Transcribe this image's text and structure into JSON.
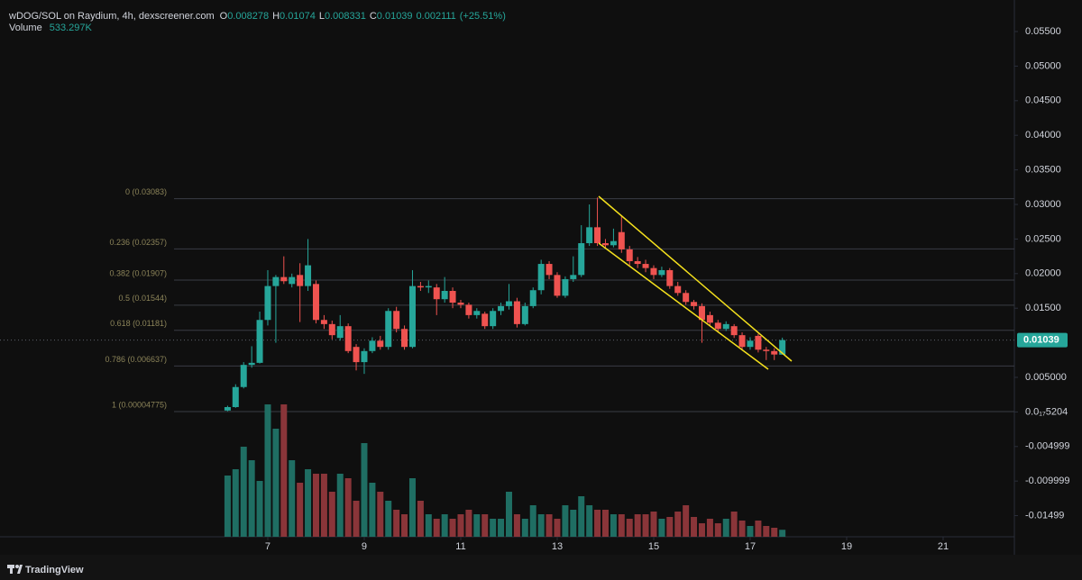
{
  "chart_data": {
    "type": "candlestick",
    "title": "wDOG/SOL on Raydium, 4h, dexscreener.com",
    "ohlc_legend": [
      {
        "label": "O",
        "value": 0.008278
      },
      {
        "label": "H",
        "value": 0.01074
      },
      {
        "label": "L",
        "value": 0.008331
      },
      {
        "label": "C",
        "value": 0.01039
      }
    ],
    "change": 0.002111,
    "change_pct_label": "(+25.51%)",
    "volume_name": "Volume",
    "volume_last": {
      "value": 533297,
      "label": "533.297K"
    },
    "last_price": 0.01039,
    "up_color": "#26a69a",
    "down_color": "#ef5350",
    "volume_up_color": "#1f6e63",
    "volume_down_color": "#8a3539",
    "x": [
      6.167,
      6.333,
      6.5,
      6.667,
      6.833,
      7,
      7.167,
      7.333,
      7.5,
      7.667,
      7.833,
      8,
      8.167,
      8.333,
      8.5,
      8.667,
      8.833,
      9,
      9.167,
      9.333,
      9.5,
      9.667,
      9.833,
      10,
      10.167,
      10.333,
      10.5,
      10.667,
      10.833,
      11,
      11.167,
      11.333,
      11.5,
      11.667,
      11.833,
      12,
      12.167,
      12.333,
      12.5,
      12.667,
      12.833,
      13,
      13.167,
      13.333,
      13.5,
      13.667,
      13.833,
      14,
      14.167,
      14.333,
      14.5,
      14.667,
      14.833,
      15,
      15.167,
      15.333,
      15.5,
      15.667,
      15.833,
      16,
      16.167,
      16.333,
      16.5,
      16.667,
      16.833,
      17,
      17.167,
      17.333,
      17.5,
      17.667
    ],
    "open": [
      0.0002,
      0.0007,
      0.0036,
      0.0068,
      0.0071,
      0.0133,
      0.0182,
      0.0195,
      0.0185,
      0.0198,
      0.0182,
      0.0185,
      0.0133,
      0.0127,
      0.0107,
      0.0124,
      0.0094,
      0.0072,
      0.0088,
      0.0103,
      0.0094,
      0.0146,
      0.012,
      0.0094,
      0.0182,
      0.018,
      0.018,
      0.0163,
      0.0175,
      0.0158,
      0.0155,
      0.014,
      0.0142,
      0.0124,
      0.0146,
      0.0153,
      0.016,
      0.0127,
      0.0153,
      0.0176,
      0.0214,
      0.0198,
      0.0168,
      0.0192,
      0.0198,
      0.0244,
      0.0267,
      0.0244,
      0.0241,
      0.026,
      0.0235,
      0.0218,
      0.0214,
      0.0208,
      0.0198,
      0.0205,
      0.0182,
      0.0172,
      0.0159,
      0.0153,
      0.014,
      0.0129,
      0.012,
      0.0124,
      0.0111,
      0.0094,
      0.011,
      0.009,
      0.0088,
      0.008278
    ],
    "high": [
      0.0009,
      0.004,
      0.0072,
      0.0095,
      0.0145,
      0.0205,
      0.0198,
      0.0225,
      0.02,
      0.0215,
      0.025,
      0.019,
      0.014,
      0.0132,
      0.014,
      0.0128,
      0.0098,
      0.0092,
      0.0108,
      0.011,
      0.015,
      0.0152,
      0.0125,
      0.0205,
      0.0188,
      0.019,
      0.0185,
      0.0195,
      0.018,
      0.0162,
      0.0158,
      0.015,
      0.0145,
      0.015,
      0.0158,
      0.0185,
      0.0165,
      0.0158,
      0.018,
      0.022,
      0.0218,
      0.0202,
      0.0196,
      0.0225,
      0.027,
      0.03,
      0.031,
      0.025,
      0.0265,
      0.0283,
      0.024,
      0.0224,
      0.022,
      0.0212,
      0.021,
      0.0208,
      0.0188,
      0.0176,
      0.0162,
      0.0157,
      0.0145,
      0.0133,
      0.0131,
      0.0127,
      0.0115,
      0.0108,
      0.0113,
      0.0094,
      0.0092,
      0.01074
    ],
    "low": [
      0.0001,
      0.0006,
      0.0034,
      0.0064,
      0.007,
      0.0125,
      0.01,
      0.0185,
      0.018,
      0.013,
      0.0175,
      0.0128,
      0.012,
      0.0105,
      0.0103,
      0.0085,
      0.006,
      0.0055,
      0.0085,
      0.009,
      0.009,
      0.0115,
      0.009,
      0.0092,
      0.0175,
      0.0172,
      0.014,
      0.0158,
      0.015,
      0.015,
      0.0135,
      0.0135,
      0.012,
      0.012,
      0.014,
      0.0148,
      0.0122,
      0.0125,
      0.015,
      0.017,
      0.0192,
      0.0165,
      0.0165,
      0.0188,
      0.0195,
      0.024,
      0.024,
      0.0236,
      0.0238,
      0.023,
      0.0212,
      0.0208,
      0.0202,
      0.0192,
      0.0195,
      0.0178,
      0.0168,
      0.0155,
      0.0148,
      0.01,
      0.0125,
      0.0115,
      0.0117,
      0.0107,
      0.009,
      0.009,
      0.0086,
      0.0075,
      0.0075,
      0.008331
    ],
    "close": [
      0.0007,
      0.0036,
      0.0068,
      0.0071,
      0.0133,
      0.0182,
      0.0195,
      0.0189,
      0.0195,
      0.0182,
      0.0212,
      0.0133,
      0.0127,
      0.0111,
      0.0124,
      0.0088,
      0.0072,
      0.0088,
      0.0103,
      0.0094,
      0.0146,
      0.012,
      0.0094,
      0.0182,
      0.018,
      0.0182,
      0.0163,
      0.0175,
      0.0158,
      0.0155,
      0.014,
      0.0146,
      0.0124,
      0.0146,
      0.0153,
      0.016,
      0.0127,
      0.0153,
      0.0176,
      0.0214,
      0.0198,
      0.0168,
      0.0192,
      0.0198,
      0.0244,
      0.0267,
      0.0244,
      0.0241,
      0.0247,
      0.0235,
      0.0218,
      0.0214,
      0.0208,
      0.0198,
      0.0205,
      0.0182,
      0.0172,
      0.0159,
      0.0153,
      0.0133,
      0.0129,
      0.012,
      0.0127,
      0.0111,
      0.0094,
      0.0103,
      0.009,
      0.0088,
      0.0083,
      0.01039
    ],
    "volume": [
      4675000,
      5156000,
      6875000,
      5844000,
      4263000,
      10106000,
      8250000,
      10106000,
      5844000,
      4125000,
      5156000,
      4813000,
      4813000,
      3438000,
      4813000,
      4469000,
      2750000,
      7150000,
      4125000,
      3438000,
      2750000,
      2063000,
      1719000,
      4469000,
      2750000,
      1719000,
      1375000,
      1719000,
      1375000,
      1719000,
      2063000,
      1719000,
      1719000,
      1375000,
      1375000,
      3438000,
      1719000,
      1375000,
      2406000,
      1719000,
      1719000,
      1375000,
      2406000,
      2063000,
      3094000,
      2406000,
      2063000,
      2063000,
      1719000,
      1719000,
      1375000,
      1719000,
      1719000,
      1925000,
      1375000,
      1513000,
      1925000,
      2406000,
      1513000,
      1031000,
      1375000,
      1031000,
      1375000,
      1925000,
      1238000,
      825000,
      1238000,
      825000,
      688000,
      533297
    ],
    "volume_ylim": [
      0,
      11000000
    ],
    "xlim": [
      1.449,
      22.477
    ],
    "xticks": [
      7,
      9,
      11,
      13,
      15,
      17,
      19,
      21
    ],
    "ylim": [
      -0.01805,
      0.05956
    ],
    "yticks": [
      {
        "value": 0.055,
        "label": "0.05500"
      },
      {
        "value": 0.05,
        "label": "0.05000"
      },
      {
        "value": 0.045,
        "label": "0.04500"
      },
      {
        "value": 0.04,
        "label": "0.04000"
      },
      {
        "value": 0.035,
        "label": "0.03500"
      },
      {
        "value": 0.03,
        "label": "0.03000"
      },
      {
        "value": 0.025,
        "label": "0.02500"
      },
      {
        "value": 0.02,
        "label": "0.02000"
      },
      {
        "value": 0.015,
        "label": "0.01500"
      },
      {
        "value": 0.005,
        "label": "0.005000"
      },
      {
        "value": 5.204e-18,
        "label": "0.0₁₇5204"
      },
      -0.004999,
      -0.009999,
      -0.01499
    ],
    "fib_levels": [
      {
        "label": "0 (0.03083)",
        "value": 0.03083
      },
      {
        "label": "0.236 (0.02357)",
        "value": 0.02357
      },
      {
        "label": "0.382 (0.01907)",
        "value": 0.01907
      },
      {
        "label": "0.5 (0.01544)",
        "value": 0.01544
      },
      {
        "label": "0.618 (0.01181)",
        "value": 0.01181
      },
      {
        "label": "0.786 (0.006637)",
        "value": 0.006637
      },
      {
        "label": "1 (0.00004775)",
        "value": 4.775e-05
      }
    ],
    "watermark": "TradingView"
  }
}
